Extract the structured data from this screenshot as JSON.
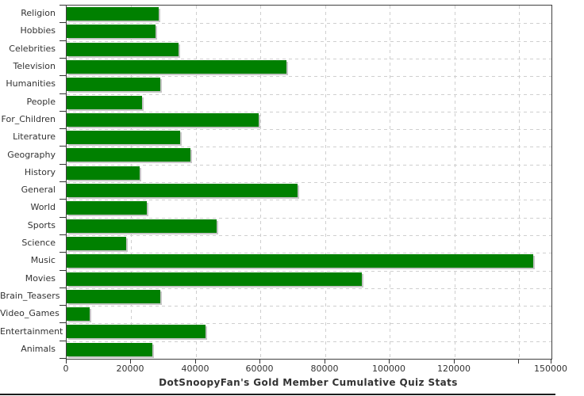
{
  "chart_data": {
    "type": "bar",
    "orientation": "horizontal",
    "title": "DotSnoopyFan's Gold Member Cumulative Quiz Stats",
    "categories": [
      "Religion",
      "Hobbies",
      "Celebrities",
      "Television",
      "Humanities",
      "People",
      "For_Children",
      "Literature",
      "Geography",
      "History",
      "General",
      "World",
      "Sports",
      "Science",
      "Music",
      "Movies",
      "Brain_Teasers",
      "Video_Games",
      "Entertainment",
      "Animals"
    ],
    "values": [
      28400,
      27600,
      34500,
      67900,
      29000,
      23200,
      59500,
      35200,
      38200,
      22700,
      71500,
      24900,
      46500,
      18300,
      144300,
      91400,
      28900,
      7200,
      42900,
      26400
    ],
    "xlabel": "",
    "ylabel": "",
    "xlim": [
      0,
      150000
    ],
    "xticks": [
      0,
      20000,
      40000,
      60000,
      80000,
      100000,
      120000,
      140000
    ],
    "xtick_labels": [
      "0",
      "20000",
      "40000",
      "60000",
      "80000",
      "100000",
      "120000",
      ""
    ],
    "x_end_tick": {
      "value": 150000,
      "label": "150000"
    },
    "grid": "dashed",
    "legend": "none",
    "bar_color": "#008000",
    "bar_shadow_color": "#c6c6c6",
    "grid_color": "#cfcfcf",
    "frame_color": "#404040",
    "text_color": "#333333"
  }
}
